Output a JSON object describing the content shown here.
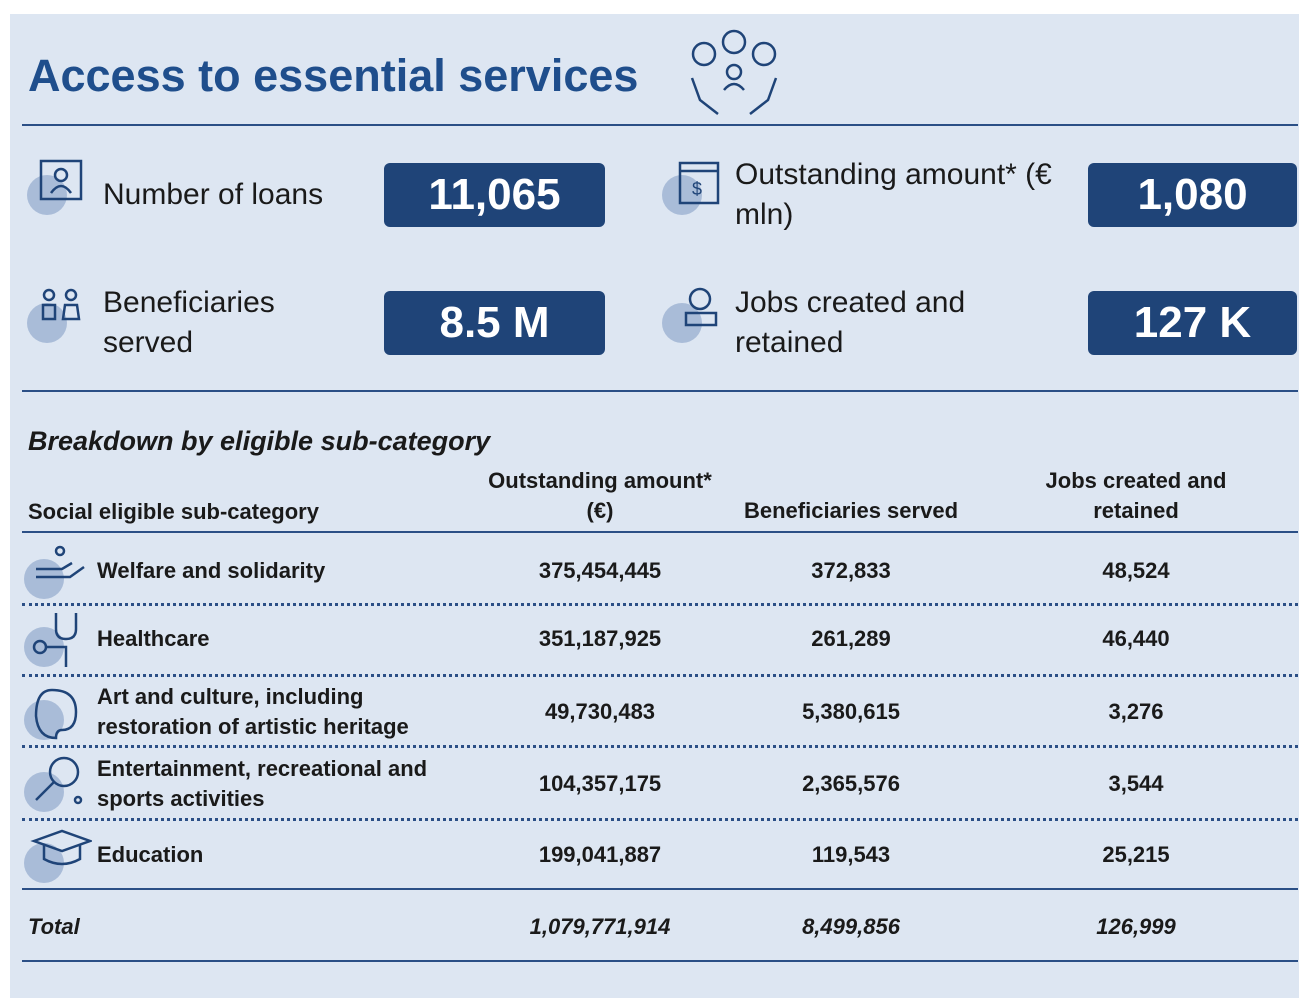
{
  "header": {
    "title": "Access to essential services"
  },
  "kpis": [
    {
      "label": "Number of loans",
      "value": "11,065"
    },
    {
      "label": "Outstanding amount* (€ mln)",
      "value": "1,080"
    },
    {
      "label": "Beneficiaries served",
      "value": "8.5 M"
    },
    {
      "label": "Jobs created and retained",
      "value": "127 K"
    }
  ],
  "table": {
    "title": "Breakdown by eligible sub-category",
    "headers": [
      "Social eligible sub-category",
      "Outstanding amount* (€)",
      "Beneficiaries served",
      "Jobs created and retained"
    ],
    "rows": [
      [
        "Welfare and solidarity",
        "375,454,445",
        "372,833",
        "48,524"
      ],
      [
        "Healthcare",
        "351,187,925",
        "261,289",
        "46,440"
      ],
      [
        "Art and culture, including restoration of artistic heritage",
        "49,730,483",
        "5,380,615",
        "3,276"
      ],
      [
        "Entertainment, recreational and sports activities",
        "104,357,175",
        "2,365,576",
        "3,544"
      ],
      [
        "Education",
        "199,041,887",
        "119,543",
        "25,215"
      ]
    ],
    "total": [
      "Total",
      "1,079,771,914",
      "8,499,856",
      "126,999"
    ]
  }
}
